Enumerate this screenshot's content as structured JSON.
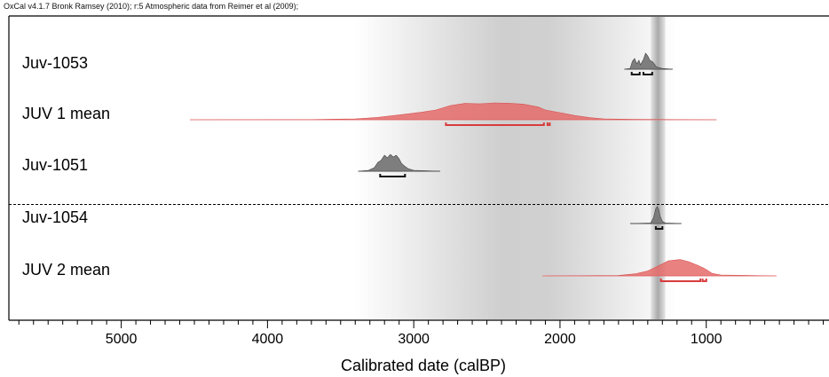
{
  "source_note": "OxCal v4.1.7 Bronk Ramsey (2010); r:5 Atmospheric data from Reimer et al (2009);",
  "chart_data": {
    "type": "area",
    "subtype": "oxcal-multiplot",
    "xlabel": "Calibrated date (calBP)",
    "xlim": [
      5800,
      0
    ],
    "reversed_x": true,
    "x_ticks": [
      5000,
      4000,
      3000,
      2000,
      1000
    ],
    "minor_tick_step": 100,
    "grid": false,
    "shaded_ranges": [
      {
        "from": 3400,
        "to": 1200,
        "style": "soft-grey-gradient"
      },
      {
        "from": 1380,
        "to": 1280,
        "style": "narrow-grey-band"
      }
    ],
    "groups": [
      {
        "separator_after": true,
        "samples": [
          {
            "name": "Juv-1053",
            "kind": "measurement",
            "color": "#777777",
            "line_range": [
              1560,
              1230
            ],
            "profile": [
              [
                1560,
                0
              ],
              [
                1520,
                0.05
              ],
              [
                1505,
                0.45
              ],
              [
                1490,
                0.6
              ],
              [
                1475,
                0.3
              ],
              [
                1460,
                0.5
              ],
              [
                1450,
                0.25
              ],
              [
                1430,
                0.55
              ],
              [
                1415,
                0.9
              ],
              [
                1400,
                0.75
              ],
              [
                1385,
                0.5
              ],
              [
                1365,
                0.4
              ],
              [
                1340,
                0.12
              ],
              [
                1300,
                0.04
              ],
              [
                1230,
                0
              ]
            ],
            "hpd_ranges": [
              [
                1510,
                1455
              ],
              [
                1430,
                1370
              ]
            ]
          },
          {
            "name": "JUV 1 mean",
            "kind": "model",
            "color": "#e56b6b",
            "line_range": [
              4530,
              930
            ],
            "profile": [
              [
                4530,
                0
              ],
              [
                3700,
                0.01
              ],
              [
                3400,
                0.05
              ],
              [
                3250,
                0.13
              ],
              [
                3100,
                0.27
              ],
              [
                2950,
                0.42
              ],
              [
                2850,
                0.55
              ],
              [
                2750,
                0.8
              ],
              [
                2650,
                0.92
              ],
              [
                2550,
                0.9
              ],
              [
                2450,
                0.95
              ],
              [
                2350,
                0.93
              ],
              [
                2250,
                0.88
              ],
              [
                2150,
                0.72
              ],
              [
                2100,
                0.55
              ],
              [
                2000,
                0.4
              ],
              [
                1900,
                0.24
              ],
              [
                1800,
                0.12
              ],
              [
                1700,
                0.05
              ],
              [
                1500,
                0.02
              ],
              [
                930,
                0
              ]
            ],
            "hpd_ranges": [
              [
                2780,
                2110
              ],
              [
                2085,
                2070
              ]
            ]
          },
          {
            "name": "Juv-1051",
            "kind": "measurement",
            "color": "#777777",
            "line_range": [
              3380,
              2820
            ],
            "profile": [
              [
                3380,
                0
              ],
              [
                3310,
                0.05
              ],
              [
                3270,
                0.2
              ],
              [
                3245,
                0.5
              ],
              [
                3225,
                0.6
              ],
              [
                3200,
                0.9
              ],
              [
                3180,
                0.75
              ],
              [
                3160,
                0.95
              ],
              [
                3140,
                0.8
              ],
              [
                3120,
                0.9
              ],
              [
                3100,
                0.7
              ],
              [
                3085,
                0.45
              ],
              [
                3065,
                0.3
              ],
              [
                3040,
                0.15
              ],
              [
                3000,
                0.05
              ],
              [
                2820,
                0
              ]
            ],
            "hpd_ranges": [
              [
                3230,
                3060
              ]
            ]
          }
        ]
      },
      {
        "separator_after": false,
        "samples": [
          {
            "name": "Juv-1054",
            "kind": "measurement",
            "color": "#777777",
            "line_range": [
              1520,
              1170
            ],
            "profile": [
              [
                1520,
                0
              ],
              [
                1380,
                0.03
              ],
              [
                1360,
                0.35
              ],
              [
                1345,
                0.85
              ],
              [
                1335,
                0.95
              ],
              [
                1325,
                0.8
              ],
              [
                1315,
                0.4
              ],
              [
                1300,
                0.12
              ],
              [
                1280,
                0.03
              ],
              [
                1170,
                0
              ]
            ],
            "hpd_ranges": [
              [
                1345,
                1300
              ]
            ]
          },
          {
            "name": "JUV 2 mean",
            "kind": "model",
            "color": "#e56b6b",
            "line_range": [
              2120,
              520
            ],
            "profile": [
              [
                2120,
                0
              ],
              [
                1600,
                0.02
              ],
              [
                1480,
                0.12
              ],
              [
                1400,
                0.28
              ],
              [
                1330,
                0.55
              ],
              [
                1260,
                0.85
              ],
              [
                1180,
                0.92
              ],
              [
                1120,
                0.8
              ],
              [
                1060,
                0.6
              ],
              [
                1020,
                0.45
              ],
              [
                990,
                0.3
              ],
              [
                960,
                0.14
              ],
              [
                900,
                0.05
              ],
              [
                520,
                0
              ]
            ],
            "hpd_ranges": [
              [
                1310,
                1040
              ],
              [
                1025,
                1000
              ]
            ]
          }
        ]
      }
    ]
  }
}
